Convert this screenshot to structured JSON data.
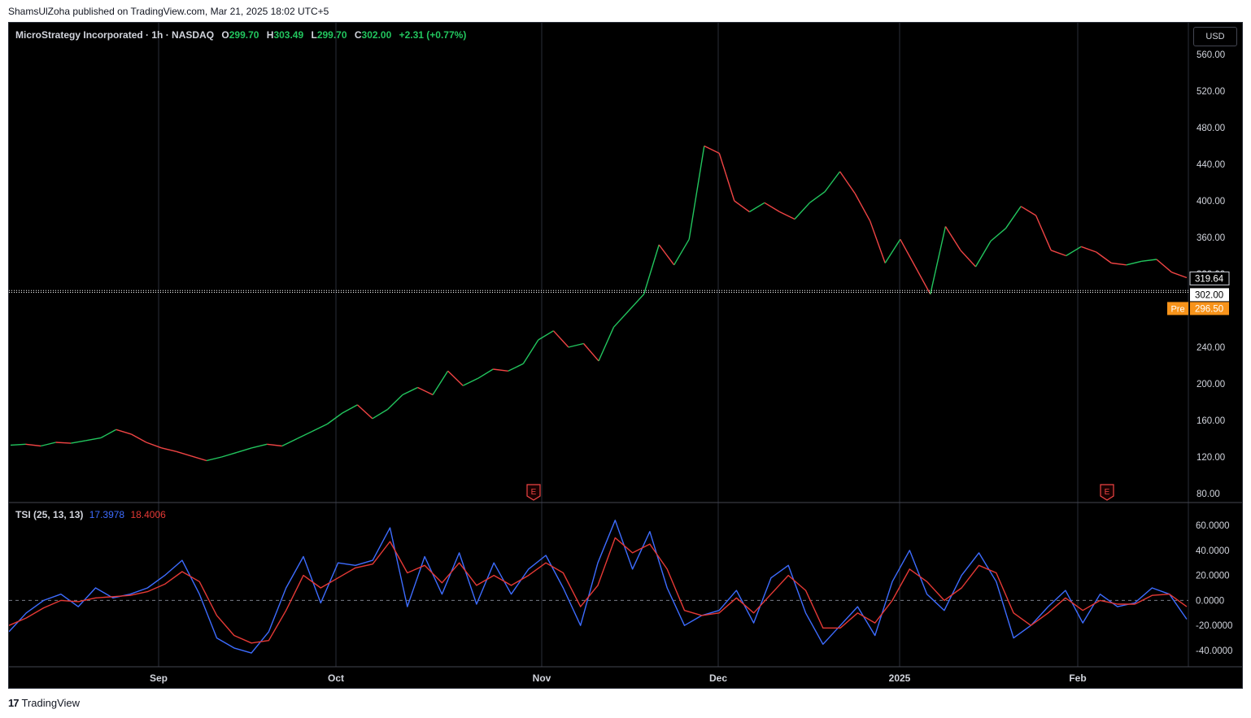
{
  "header": {
    "publisher": "ShamsUlZoha published on TradingView.com, Mar 21, 2025 18:02 UTC+5"
  },
  "legend": {
    "symbol": "MicroStrategy Incorporated · 1h · NASDAQ",
    "o_label": "O",
    "o_value": "299.70",
    "h_label": "H",
    "h_value": "303.49",
    "l_label": "L",
    "l_value": "299.70",
    "c_label": "C",
    "c_value": "302.00",
    "change": "+2.31 (+0.77%)"
  },
  "tsi_legend": {
    "name": "TSI (25, 13, 13)",
    "value1": "17.3978",
    "value2": "18.4006"
  },
  "currency_button": "USD",
  "price_labels": {
    "last": "319.64",
    "close": "302.00",
    "pre_tag": "Pre",
    "pre_value": "296.50"
  },
  "colors": {
    "up": "#22c55e",
    "down": "#ef4444",
    "tsi": "#3d6cff",
    "signal": "#e53935",
    "pre": "#f7931a"
  },
  "footer": {
    "brand": "TradingView"
  },
  "chart_data": [
    {
      "type": "line",
      "title": "MicroStrategy Incorporated · 1h · NASDAQ",
      "ylabel": "USD",
      "ylim": [
        80,
        580
      ],
      "y_ticks": [
        "560.00",
        "520.00",
        "480.00",
        "440.00",
        "400.00",
        "360.00",
        "320.00",
        "280.00",
        "240.00",
        "200.00",
        "160.00",
        "120.00",
        "80.00"
      ],
      "x_ticks": [
        "Sep",
        "Oct",
        "Nov",
        "Dec",
        "2025",
        "Feb"
      ],
      "grid": true,
      "earnings_markers": [
        "E",
        "E"
      ],
      "series": [
        {
          "values": [
            133,
            134,
            132,
            136,
            135,
            138,
            141,
            150,
            145,
            136,
            130,
            126,
            121,
            116,
            120,
            125,
            130,
            134,
            132,
            140,
            148,
            156,
            168,
            177,
            162,
            172,
            188,
            196,
            188,
            214,
            198,
            206,
            216,
            214,
            222,
            248,
            258,
            240,
            244,
            225,
            262,
            280,
            298,
            352,
            330,
            358,
            460,
            452,
            400,
            388,
            398,
            388,
            380,
            398,
            410,
            432,
            408,
            378,
            332,
            358,
            328,
            298,
            372,
            346,
            328,
            356,
            370,
            394,
            384,
            346,
            340,
            350,
            344,
            332,
            330,
            334,
            336,
            322,
            316
          ]
        }
      ]
    },
    {
      "type": "line",
      "title": "TSI (25, 13, 13)",
      "ylim": [
        -45,
        70
      ],
      "y_ticks": [
        "60.0000",
        "40.0000",
        "20.0000",
        "0.0000",
        "-20.0000",
        "-40.0000"
      ],
      "series": [
        {
          "name": "TSI",
          "values": [
            -25,
            -10,
            0,
            5,
            -5,
            10,
            2,
            5,
            10,
            20,
            32,
            5,
            -30,
            -38,
            -42,
            -25,
            10,
            35,
            -2,
            30,
            28,
            32,
            58,
            -5,
            35,
            5,
            38,
            -3,
            30,
            5,
            25,
            36,
            10,
            -20,
            30,
            64,
            25,
            55,
            10,
            -20,
            -12,
            -8,
            8,
            -18,
            18,
            28,
            -10,
            -35,
            -20,
            -5,
            -28,
            15,
            40,
            5,
            -8,
            20,
            38,
            15,
            -30,
            -20,
            -5,
            8,
            -18,
            5,
            -5,
            -2,
            10,
            5,
            -15
          ]
        },
        {
          "name": "Signal",
          "values": [
            -20,
            -14,
            -6,
            0,
            -1,
            2,
            3,
            4,
            7,
            13,
            23,
            15,
            -12,
            -28,
            -34,
            -32,
            -8,
            20,
            10,
            18,
            26,
            29,
            47,
            22,
            28,
            14,
            30,
            12,
            20,
            12,
            20,
            30,
            22,
            -5,
            12,
            50,
            38,
            45,
            25,
            -8,
            -12,
            -10,
            2,
            -10,
            5,
            20,
            8,
            -22,
            -22,
            -10,
            -18,
            0,
            25,
            15,
            0,
            10,
            28,
            22,
            -10,
            -20,
            -10,
            2,
            -8,
            0,
            -3,
            -3,
            4,
            5,
            -5
          ]
        }
      ]
    }
  ]
}
